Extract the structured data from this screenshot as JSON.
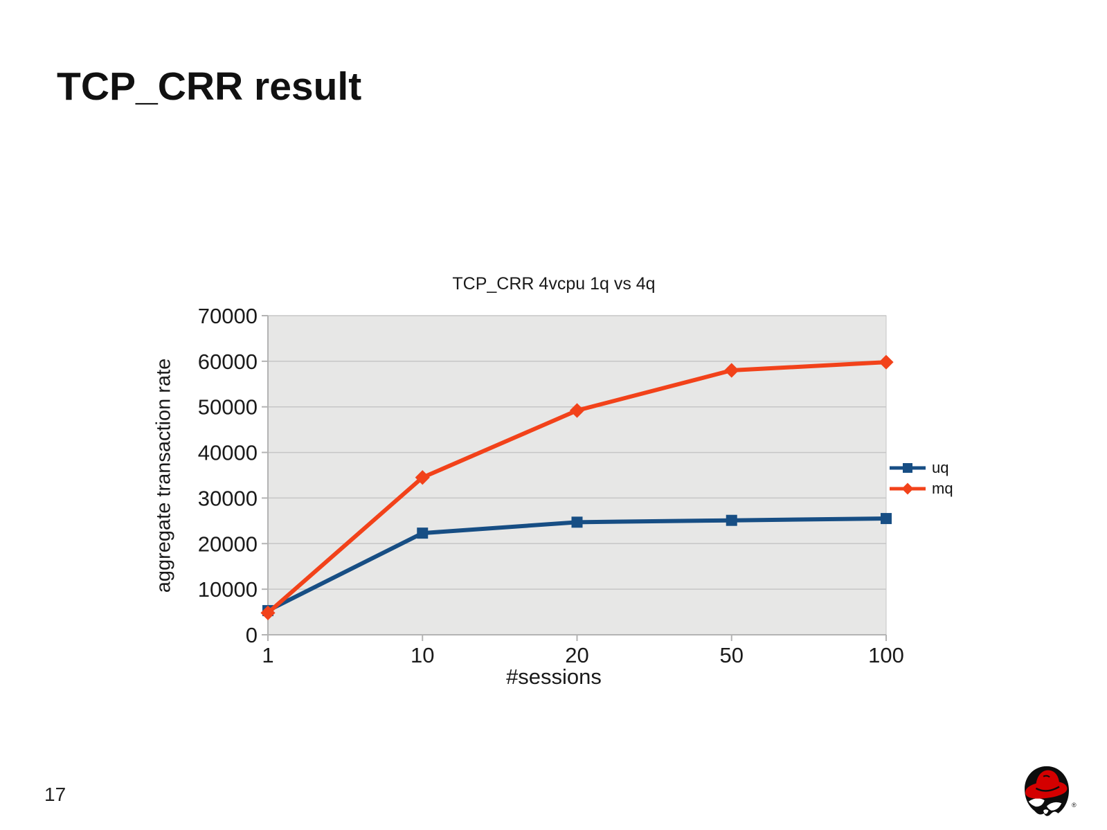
{
  "slide": {
    "title": "TCP_CRR result",
    "page_number": "17"
  },
  "chart_data": {
    "type": "line",
    "title": "TCP_CRR 4vcpu 1q vs 4q",
    "xlabel": "#sessions",
    "ylabel": "aggregate transaction rate",
    "categories": [
      "1",
      "10",
      "20",
      "50",
      "100"
    ],
    "series": [
      {
        "name": "uq",
        "color": "#174e84",
        "marker": "square",
        "values": [
          5300,
          22300,
          24700,
          25100,
          25500
        ]
      },
      {
        "name": "mq",
        "color": "#f2421a",
        "marker": "diamond",
        "values": [
          4800,
          34500,
          49200,
          58000,
          59800
        ]
      }
    ],
    "ylim": [
      0,
      70000
    ],
    "yticks": [
      0,
      10000,
      20000,
      30000,
      40000,
      50000,
      60000,
      70000
    ],
    "grid": true,
    "legend_position": "right",
    "wall_color": "#e7e7e6",
    "gridline_color": "#c6c6c6",
    "axis_color": "#b3b3b3",
    "tick_label_color": "#1a1a1a"
  },
  "icons": {
    "logo": "redhat-shadowman-logo",
    "registered_mark": "®"
  }
}
